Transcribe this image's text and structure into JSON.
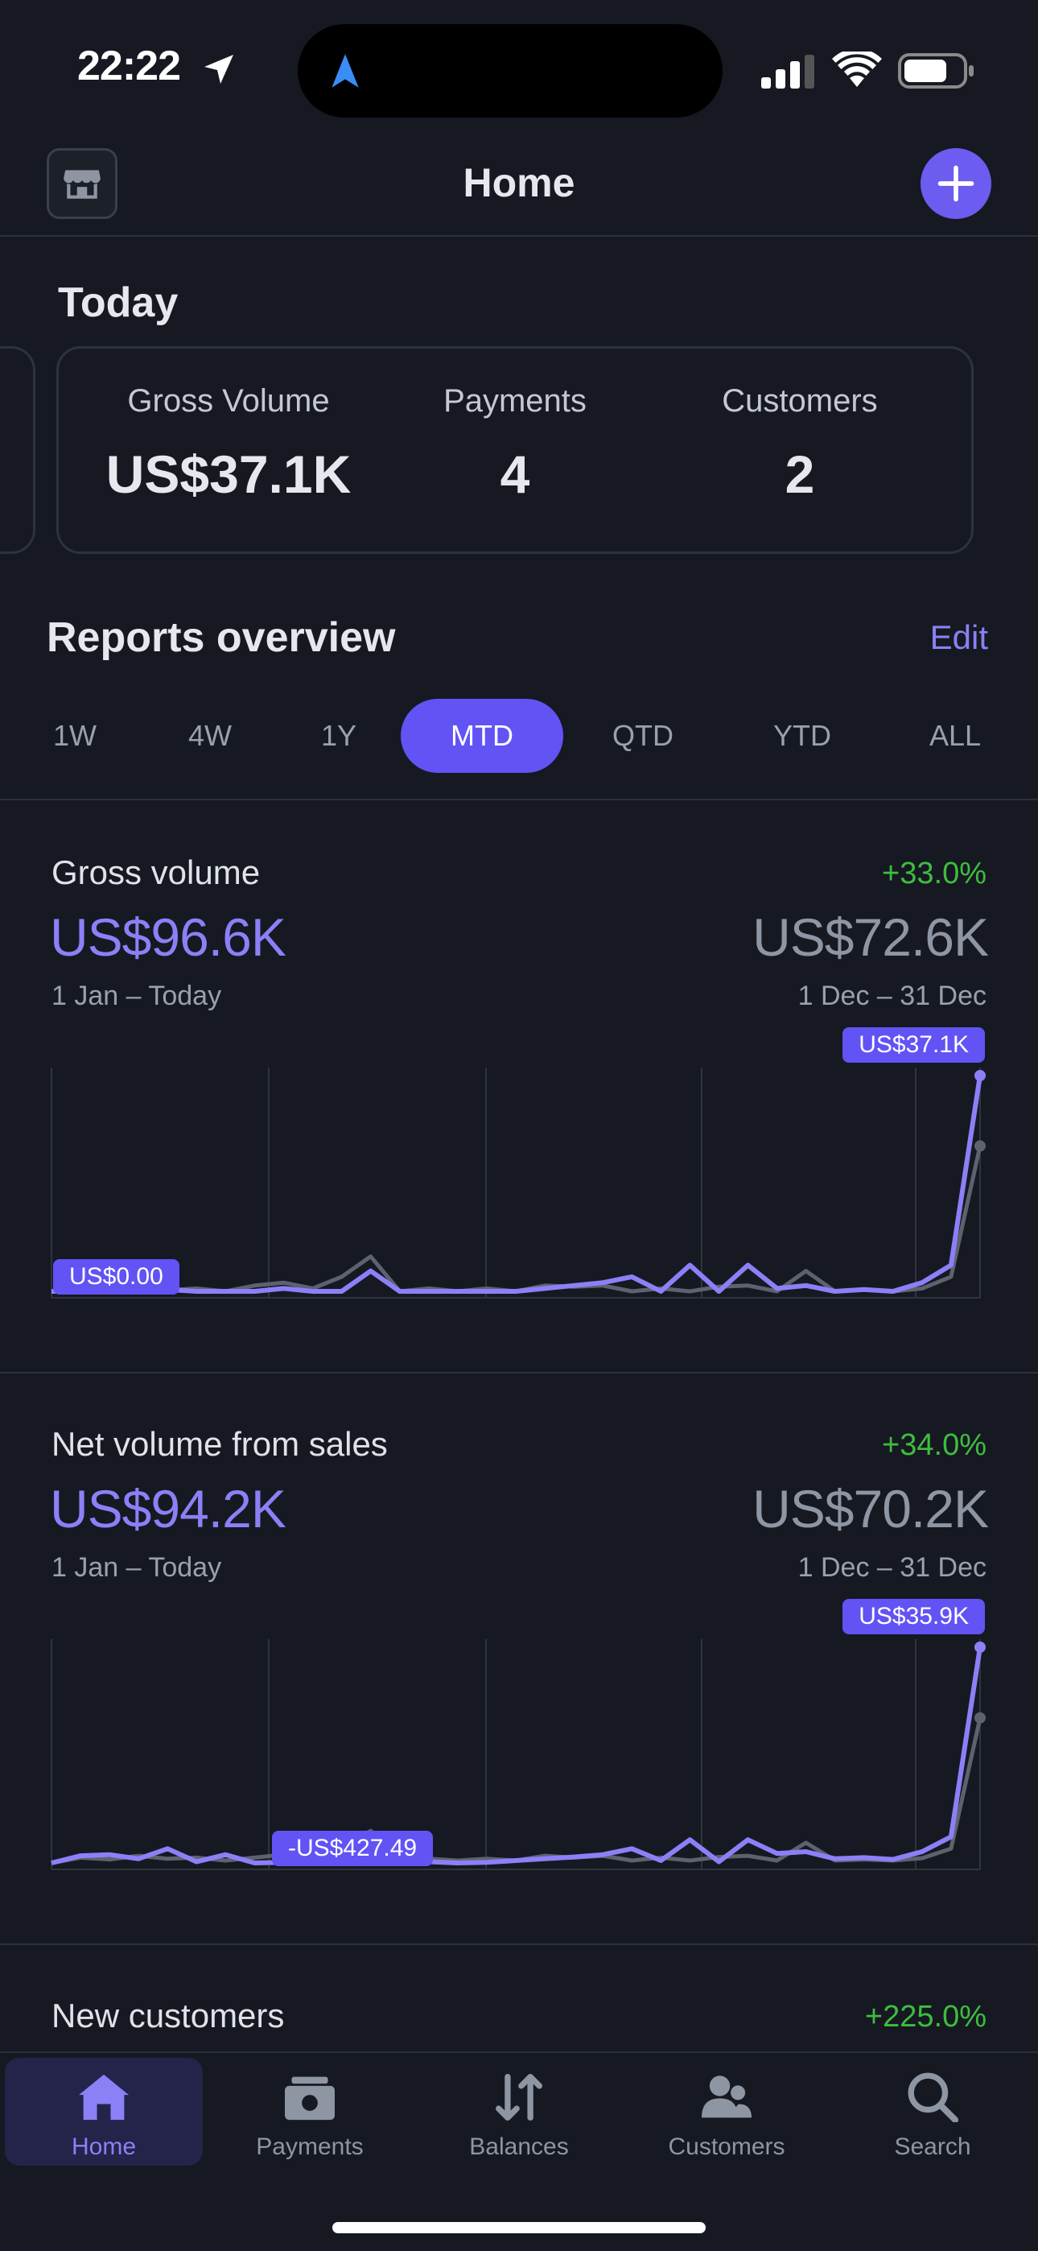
{
  "status_bar": {
    "time": "22:22"
  },
  "header": {
    "title": "Home",
    "store_icon": "store-icon",
    "add_icon": "plus-icon"
  },
  "today": {
    "title": "Today",
    "metrics": [
      {
        "label": "Gross Volume",
        "value": "US$37.1K"
      },
      {
        "label": "Payments",
        "value": "4"
      },
      {
        "label": "Customers",
        "value": "2"
      }
    ]
  },
  "reports": {
    "title": "Reports overview",
    "edit_label": "Edit",
    "periods": [
      "1W",
      "4W",
      "1Y",
      "MTD",
      "QTD",
      "YTD",
      "ALL"
    ],
    "active_period": "MTD"
  },
  "sections": {
    "gross": {
      "label": "Gross volume",
      "change": "+33.0%",
      "value": "US$96.6K",
      "range": "1 Jan – Today",
      "prev_value": "US$72.6K",
      "prev_range": "1 Dec – 31 Dec",
      "min_chip": "US$0.00",
      "max_chip": "US$37.1K"
    },
    "net": {
      "label": "Net volume from sales",
      "change": "+34.0%",
      "value": "US$94.2K",
      "range": "1 Jan – Today",
      "prev_value": "US$70.2K",
      "prev_range": "1 Dec – 31 Dec",
      "min_chip": "-US$427.49",
      "max_chip": "US$35.9K"
    },
    "customers": {
      "label": "New customers",
      "change": "+225.0%"
    }
  },
  "chart_data": [
    {
      "type": "line",
      "series": [
        {
          "values": [
            0,
            0,
            0,
            0,
            0.3,
            0,
            0,
            0,
            0.5,
            0,
            0,
            3.5,
            0,
            0,
            0,
            0,
            0,
            0.5,
            1,
            1.5,
            2.5,
            0,
            4.5,
            0,
            4.5,
            0.5,
            1,
            0,
            0.3,
            0,
            1.5,
            4.5,
            37.1
          ]
        },
        {
          "values": [
            0,
            0.5,
            0,
            0,
            0.2,
            0.5,
            0,
            1,
            1.5,
            0.5,
            2.5,
            6,
            0,
            0.5,
            0,
            0.5,
            0,
            1,
            0.8,
            1,
            0,
            0.5,
            0,
            0.8,
            1,
            0,
            3.5,
            0,
            0.3,
            0,
            0.5,
            2.5,
            25
          ]
        }
      ],
      "color_current": "#8d7ff7",
      "color_previous": "#5d626e"
    },
    {
      "type": "line",
      "series": [
        {
          "values": [
            -0.4,
            0.8,
            1,
            0.3,
            2,
            -0.2,
            1,
            -0.4,
            -0.3,
            1.5,
            3,
            -0.4,
            -0.2,
            -0.2,
            -0.4,
            -0.3,
            0,
            0.3,
            0.6,
            1,
            2,
            0,
            3.5,
            -0.2,
            3.5,
            1.2,
            1.5,
            0.3,
            0.5,
            0.2,
            1.5,
            4,
            35.9
          ]
        },
        {
          "values": [
            -0.4,
            0.5,
            0.2,
            0.8,
            0.3,
            0.5,
            0,
            0.5,
            1,
            0.3,
            2,
            5,
            0.2,
            0.3,
            0,
            0.3,
            0,
            0.8,
            0.5,
            0.8,
            0,
            0.5,
            0,
            0.6,
            0.8,
            0,
            3,
            0,
            0.2,
            0,
            0.4,
            2,
            24
          ]
        }
      ],
      "color_current": "#8d7ff7",
      "color_previous": "#5d626e"
    }
  ],
  "tabbar": {
    "items": [
      {
        "label": "Home",
        "icon": "home-icon"
      },
      {
        "label": "Payments",
        "icon": "payments-icon"
      },
      {
        "label": "Balances",
        "icon": "balances-icon"
      },
      {
        "label": "Customers",
        "icon": "customers-icon"
      },
      {
        "label": "Search",
        "icon": "search-icon"
      }
    ]
  }
}
